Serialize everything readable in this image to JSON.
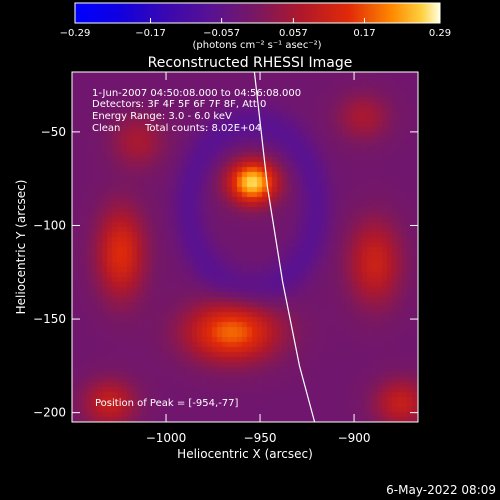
{
  "chart_data": {
    "type": "heatmap",
    "title": "Reconstructed RHESSI Image",
    "xlabel": "Heliocentric X (arcsec)",
    "ylabel": "Heliocentric Y (arcsec)",
    "xlim": [
      -1050,
      -866
    ],
    "ylim": [
      -205,
      -18
    ],
    "x_ticks": [
      -1000,
      -950,
      -900
    ],
    "x_tick_labels": [
      "−1000",
      "−950",
      "−900"
    ],
    "y_ticks": [
      -50,
      -100,
      -150,
      -200
    ],
    "y_tick_labels": [
      "−50",
      "−100",
      "−150",
      "−200"
    ],
    "colorbar": {
      "min": -0.29,
      "max": 0.29,
      "ticks": [
        -0.29,
        -0.17,
        -0.057,
        0.057,
        0.17,
        0.29
      ],
      "tick_labels": [
        "−0.29",
        "−0.17",
        "−0.057",
        "0.057",
        "0.17",
        "0.29"
      ],
      "units_label": "(photons cm⁻² s⁻¹ asec⁻²)"
    },
    "sources": [
      {
        "x": -954,
        "y": -77,
        "peak": 0.29,
        "sigma_x": 9,
        "sigma_y": 8
      },
      {
        "x": -965,
        "y": -157,
        "peak": 0.21,
        "sigma_x": 17,
        "sigma_y": 11
      },
      {
        "x": -1024,
        "y": -115,
        "peak": 0.16,
        "sigma_x": 9,
        "sigma_y": 17
      },
      {
        "x": -889,
        "y": -120,
        "peak": 0.13,
        "sigma_x": 10,
        "sigma_y": 16
      },
      {
        "x": -1030,
        "y": -195,
        "peak": 0.12,
        "sigma_x": 10,
        "sigma_y": 9
      },
      {
        "x": -875,
        "y": -195,
        "peak": 0.12,
        "sigma_x": 10,
        "sigma_y": 9
      },
      {
        "x": -1015,
        "y": -55,
        "peak": 0.08,
        "sigma_x": 10,
        "sigma_y": 10
      },
      {
        "x": -895,
        "y": -42,
        "peak": 0.08,
        "sigma_x": 10,
        "sigma_y": 9
      }
    ],
    "limb_line": [
      [
        -953,
        -18
      ],
      [
        -946,
        -80
      ],
      [
        -938,
        -130
      ],
      [
        -929,
        -175
      ],
      [
        -921,
        -205
      ]
    ]
  },
  "annotations": {
    "time_range": "1-Jun-2007 04:50:08.000 to 04:56:08.000",
    "detectors": "Detectors: 3F 4F 5F 6F 7F 8F, Att 0",
    "energy_range": "Energy Range: 3.0 - 6.0 keV",
    "clean": "Clean",
    "total_counts": "Total counts: 8.02E+04",
    "peak_position": "Position of Peak = [-954,-77]"
  },
  "footer": {
    "date": "6-May-2022 08:09"
  }
}
